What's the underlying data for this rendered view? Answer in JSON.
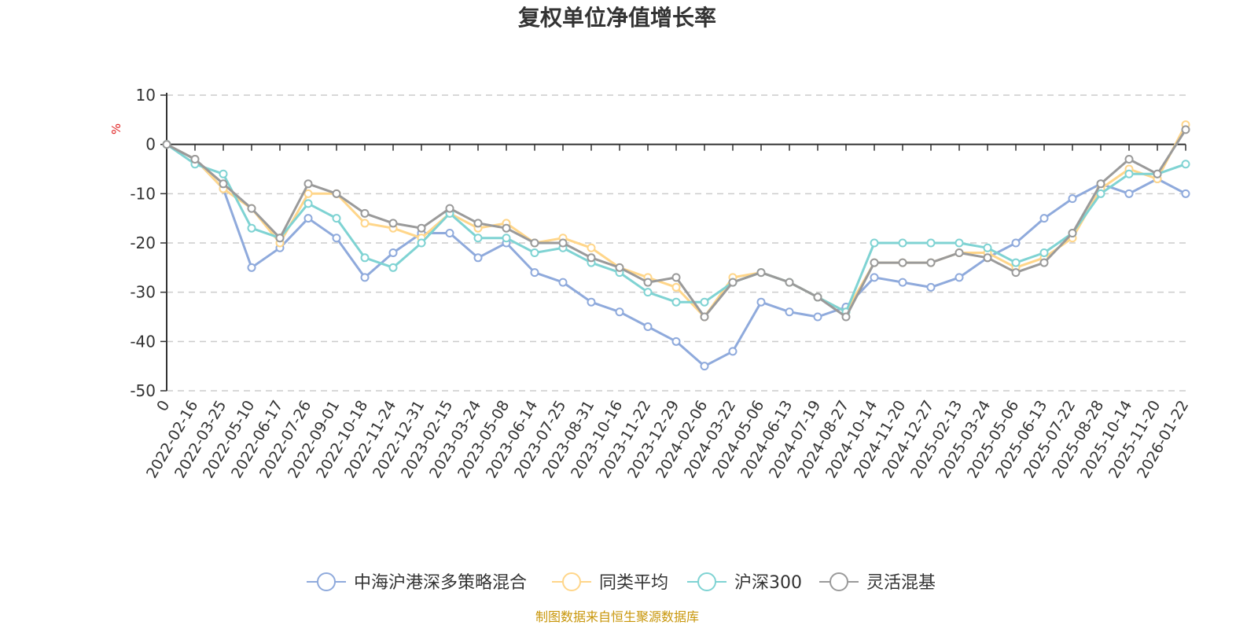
{
  "chart_data": {
    "type": "line",
    "title": "复权单位净值增长率",
    "ylabel": "%",
    "ylim": [
      -50,
      10
    ],
    "yticks": [
      10,
      0,
      -10,
      -20,
      -30,
      -40,
      -50
    ],
    "grid": true,
    "legend_position": "bottom",
    "x_labels": [
      "0",
      "2022-02-16",
      "2022-03-25",
      "2022-05-10",
      "2022-06-17",
      "2022-07-26",
      "2022-09-01",
      "2022-10-18",
      "2022-11-24",
      "2022-12-31",
      "2023-02-15",
      "2023-03-24",
      "2023-05-08",
      "2023-06-14",
      "2023-07-25",
      "2023-08-31",
      "2023-10-16",
      "2023-11-22",
      "2023-12-29",
      "2024-02-06",
      "2024-03-22",
      "2024-05-06",
      "2024-06-13",
      "2024-07-19",
      "2024-08-27",
      "2024-10-14",
      "2024-11-20",
      "2024-12-27",
      "2025-02-13",
      "2025-03-24",
      "2025-05-06",
      "2025-06-13",
      "2025-07-22",
      "2025-08-28",
      "2025-10-14",
      "2025-11-20",
      "2026-01-22"
    ],
    "series": [
      {
        "name": "中海沪港深多策略混合",
        "color": "#8faadc",
        "values": [
          0,
          -3,
          -9,
          -25,
          -21,
          -15,
          -19,
          -27,
          -22,
          -18,
          -18,
          -23,
          -20,
          -26,
          -28,
          -32,
          -34,
          -37,
          -40,
          -45,
          -42,
          -32,
          -34,
          -35,
          -33,
          -27,
          -28,
          -29,
          -27,
          -23,
          -20,
          -15,
          -11,
          -8,
          -10,
          -7,
          -10
        ]
      },
      {
        "name": "同类平均",
        "color": "#ffd68a",
        "values": [
          0,
          -3,
          -9,
          -13,
          -20,
          -10,
          -10,
          -16,
          -17,
          -19,
          -14,
          -17,
          -16,
          -20,
          -19,
          -21,
          -25,
          -27,
          -29,
          -35,
          -27,
          -26,
          -28,
          -31,
          -34,
          -24,
          -24,
          -24,
          -22,
          -22,
          -25,
          -23,
          -19,
          -9,
          -5,
          -7,
          4
        ]
      },
      {
        "name": "沪深300",
        "color": "#7fd3d3",
        "values": [
          0,
          -4,
          -6,
          -17,
          -19,
          -12,
          -15,
          -23,
          -25,
          -20,
          -14,
          -19,
          -19,
          -22,
          -21,
          -24,
          -26,
          -30,
          -32,
          -32,
          -28,
          -26,
          -28,
          -31,
          -34,
          -20,
          -20,
          -20,
          -20,
          -21,
          -24,
          -22,
          -18,
          -10,
          -6,
          -6,
          -4
        ]
      },
      {
        "name": "灵活混基",
        "color": "#9a9a9a",
        "values": [
          0,
          -3,
          -8,
          -13,
          -19,
          -8,
          -10,
          -14,
          -16,
          -17,
          -13,
          -16,
          -17,
          -20,
          -20,
          -23,
          -25,
          -28,
          -27,
          -35,
          -28,
          -26,
          -28,
          -31,
          -35,
          -24,
          -24,
          -24,
          -22,
          -23,
          -26,
          -24,
          -18,
          -8,
          -3,
          -6,
          3
        ]
      }
    ]
  },
  "source_note": "制图数据来自恒生聚源数据库"
}
